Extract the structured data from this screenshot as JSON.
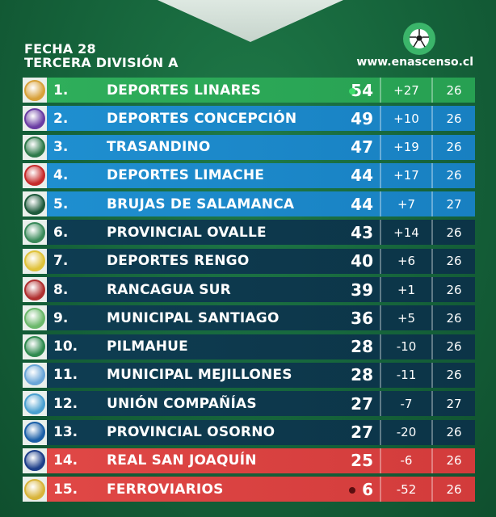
{
  "header": {
    "line1": "FECHA 28",
    "line2": "TERCERA DIVISIÓN A"
  },
  "site": "www.enascenso.cl",
  "logo_icon": "soccer-ball-icon",
  "colors": {
    "green": "#2fae5b",
    "blue": "#1f8fd0",
    "dark": "#0e3d52",
    "red": "#e04846"
  },
  "table": {
    "rows": [
      {
        "pos": "1.",
        "team": "DEPORTES LINARES",
        "pts": "54",
        "dif": "+27",
        "pj": "26",
        "zone": "green",
        "dot": "#3ddc6a",
        "crest": "#d8a13a"
      },
      {
        "pos": "2.",
        "team": "DEPORTES CONCEPCIÓN",
        "pts": "49",
        "dif": "+10",
        "pj": "26",
        "zone": "blue",
        "dot": "",
        "crest": "#6a3da3"
      },
      {
        "pos": "3.",
        "team": "TRASANDINO",
        "pts": "47",
        "dif": "+19",
        "pj": "26",
        "zone": "blue",
        "dot": "",
        "crest": "#2e7a4a"
      },
      {
        "pos": "4.",
        "team": "DEPORTES LIMACHE",
        "pts": "44",
        "dif": "+17",
        "pj": "26",
        "zone": "blue",
        "dot": "",
        "crest": "#c62b2b"
      },
      {
        "pos": "5.",
        "team": "BRUJAS DE SALAMANCA",
        "pts": "44",
        "dif": "+7",
        "pj": "27",
        "zone": "blue",
        "dot": "",
        "crest": "#1e5a3c"
      },
      {
        "pos": "6.",
        "team": "PROVINCIAL OVALLE",
        "pts": "43",
        "dif": "+14",
        "pj": "26",
        "zone": "dark",
        "dot": "",
        "crest": "#3a8a5a"
      },
      {
        "pos": "7.",
        "team": "DEPORTES RENGO",
        "pts": "40",
        "dif": "+6",
        "pj": "26",
        "zone": "dark",
        "dot": "",
        "crest": "#e0c23a"
      },
      {
        "pos": "8.",
        "team": "RANCAGUA SUR",
        "pts": "39",
        "dif": "+1",
        "pj": "26",
        "zone": "dark",
        "dot": "",
        "crest": "#b03030"
      },
      {
        "pos": "9.",
        "team": "MUNICIPAL SANTIAGO",
        "pts": "36",
        "dif": "+5",
        "pj": "26",
        "zone": "dark",
        "dot": "",
        "crest": "#6bb86b"
      },
      {
        "pos": "10.",
        "team": "PILMAHUE",
        "pts": "28",
        "dif": "-10",
        "pj": "26",
        "zone": "dark",
        "dot": "",
        "crest": "#2f8a4f"
      },
      {
        "pos": "11.",
        "team": "MUNICIPAL MEJILLONES",
        "pts": "28",
        "dif": "-11",
        "pj": "26",
        "zone": "dark",
        "dot": "",
        "crest": "#6aa6d8"
      },
      {
        "pos": "12.",
        "team": "UNIÓN COMPAÑÍAS",
        "pts": "27",
        "dif": "-7",
        "pj": "27",
        "zone": "dark",
        "dot": "",
        "crest": "#4aa0d0"
      },
      {
        "pos": "13.",
        "team": "PROVINCIAL OSORNO",
        "pts": "27",
        "dif": "-20",
        "pj": "26",
        "zone": "dark",
        "dot": "",
        "crest": "#1b5fa8"
      },
      {
        "pos": "14.",
        "team": "REAL SAN JOAQUÍN",
        "pts": "25",
        "dif": "-6",
        "pj": "26",
        "zone": "red",
        "dot": "",
        "crest": "#1e3f8a"
      },
      {
        "pos": "15.",
        "team": "FERROVIARIOS",
        "pts": "6",
        "dif": "-52",
        "pj": "26",
        "zone": "red",
        "dot": "#5a0e10",
        "crest": "#d8b43a"
      }
    ]
  }
}
